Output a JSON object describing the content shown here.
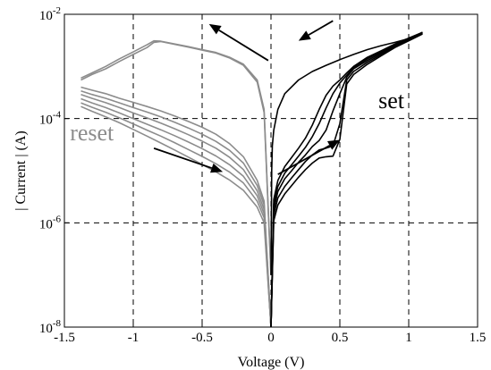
{
  "chart_data": {
    "type": "line",
    "title": "",
    "xlabel": "Voltage (V)",
    "ylabel": "| Current | (A)",
    "xscale": "linear",
    "yscale": "log",
    "xlim": [
      -1.5,
      1.5
    ],
    "ylim": [
      1e-08,
      0.01
    ],
    "grid": true,
    "grid_style": "dashed",
    "x_ticks": [
      -1.5,
      -1,
      -0.5,
      0,
      0.5,
      1,
      1.5
    ],
    "x_tick_labels": [
      "-1.5",
      "-1",
      "-0.5",
      "0",
      "0.5",
      "1",
      "1.5"
    ],
    "y_ticks": [
      1e-08,
      1e-06,
      0.0001,
      0.01
    ],
    "y_tick_labels": [
      {
        "base": "10",
        "exp": "-8"
      },
      {
        "base": "10",
        "exp": "-6"
      },
      {
        "base": "10",
        "exp": "-4"
      },
      {
        "base": "10",
        "exp": "-2"
      }
    ],
    "colors": {
      "set": "#000000",
      "reset": "#8c8c8c"
    },
    "annotations": [
      {
        "text": "set",
        "x": 0.78,
        "y": 0.00016,
        "color": "#000000"
      },
      {
        "text": "reset",
        "x": -1.2,
        "y": 3.8e-05,
        "color": "#8c8c8c"
      }
    ],
    "arrows": [
      {
        "from": [
          0.05,
          8.5e-06
        ],
        "to": [
          0.5,
          3.9e-05
        ],
        "color": "#000000"
      },
      {
        "from": [
          0.45,
          0.0075
        ],
        "to": [
          0.2,
          0.0031
        ],
        "color": "#000000"
      },
      {
        "from": [
          -0.02,
          0.0013
        ],
        "to": [
          -0.45,
          0.0065
        ],
        "color": "#000000"
      },
      {
        "from": [
          -0.85,
          2.7e-05
        ],
        "to": [
          -0.35,
          9.5e-06
        ],
        "color": "#000000"
      }
    ],
    "series": [
      {
        "group": "set",
        "color": "#000000",
        "x": [
          0.0,
          0.02,
          0.05,
          0.1,
          0.15,
          0.2,
          0.25,
          0.3,
          0.35,
          0.4,
          0.45,
          0.5,
          0.55,
          0.6,
          0.7,
          0.8,
          0.9,
          1.0,
          1.1
        ],
        "y": [
          1e-08,
          1.1e-06,
          2.2e-06,
          3.6e-06,
          5.2e-06,
          7.5e-06,
          1.05e-05,
          1.4e-05,
          1.75e-05,
          1.85e-05,
          1.9e-05,
          4e-05,
          0.00046,
          0.0007,
          0.0011,
          0.0016,
          0.0023,
          0.0031,
          0.0042
        ]
      },
      {
        "group": "set",
        "color": "#000000",
        "x": [
          0.0,
          0.02,
          0.05,
          0.1,
          0.15,
          0.2,
          0.25,
          0.3,
          0.35,
          0.4,
          0.45,
          0.5,
          0.55,
          0.6,
          0.7,
          0.8,
          0.9,
          1.0,
          1.1
        ],
        "y": [
          1e-08,
          1.4e-06,
          3e-06,
          5e-06,
          7.3e-06,
          1.05e-05,
          1.5e-05,
          2e-05,
          2.5e-05,
          2.7e-05,
          3e-05,
          8e-05,
          0.00055,
          0.0008,
          0.0012,
          0.0017,
          0.0024,
          0.0032,
          0.0043
        ]
      },
      {
        "group": "set",
        "color": "#000000",
        "x": [
          0.0,
          0.02,
          0.05,
          0.1,
          0.15,
          0.2,
          0.25,
          0.3,
          0.35,
          0.4,
          0.45,
          0.5,
          0.55,
          0.6,
          0.7,
          0.8,
          0.9,
          1.0,
          1.1
        ],
        "y": [
          1e-08,
          1.8e-06,
          4e-06,
          7e-06,
          1e-05,
          1.45e-05,
          2e-05,
          2.9e-05,
          3.8e-05,
          6e-05,
          0.00014,
          0.0003,
          0.00062,
          0.0009,
          0.0013,
          0.0018,
          0.0025,
          0.0033,
          0.0044
        ]
      },
      {
        "group": "set",
        "color": "#000000",
        "x": [
          0.0,
          0.02,
          0.05,
          0.1,
          0.15,
          0.2,
          0.25,
          0.3,
          0.35,
          0.4,
          0.45,
          0.5,
          0.55,
          0.6,
          0.7,
          0.8,
          0.9,
          1.0,
          1.1
        ],
        "y": [
          1e-08,
          2.3e-06,
          5e-06,
          9e-06,
          1.3e-05,
          1.9e-05,
          2.8e-05,
          4.5e-05,
          8e-05,
          0.00016,
          0.0003,
          0.00048,
          0.00068,
          0.00095,
          0.0014,
          0.0019,
          0.0026,
          0.0034,
          0.0045
        ]
      },
      {
        "group": "set",
        "color": "#000000",
        "x": [
          0.0,
          0.02,
          0.05,
          0.1,
          0.15,
          0.2,
          0.25,
          0.3,
          0.35,
          0.4,
          0.45,
          0.5,
          0.55,
          0.6,
          0.7,
          0.8,
          0.9,
          1.0,
          1.1
        ],
        "y": [
          1e-08,
          2.8e-06,
          6.5e-06,
          1.2e-05,
          1.8e-05,
          2.7e-05,
          4.2e-05,
          7.5e-05,
          0.00015,
          0.00028,
          0.00042,
          0.00055,
          0.00075,
          0.001,
          0.0015,
          0.002,
          0.0027,
          0.0035,
          0.0045
        ]
      },
      {
        "group": "set",
        "color": "#000000",
        "x": [
          0.0,
          0.005,
          0.01,
          0.02,
          0.05,
          0.1,
          0.2,
          0.3,
          0.4,
          0.5,
          0.6,
          0.7,
          0.8,
          0.9,
          1.0,
          1.1
        ],
        "y": [
          1e-07,
          1e-05,
          3e-05,
          6e-05,
          0.00015,
          0.0003,
          0.00055,
          0.0008,
          0.00105,
          0.00135,
          0.0017,
          0.0021,
          0.0025,
          0.0029,
          0.0034,
          0.0045
        ]
      },
      {
        "group": "reset",
        "color": "#8c8c8c",
        "x": [
          0.0,
          -0.05,
          -0.1,
          -0.2,
          -0.3,
          -0.4,
          -0.5,
          -0.6,
          -0.7,
          -0.8,
          -0.85,
          -0.9,
          -1.0,
          -1.1,
          -1.2,
          -1.3,
          -1.38
        ],
        "y": [
          1e-07,
          0.00015,
          0.00055,
          0.0011,
          0.0015,
          0.00185,
          0.0021,
          0.0024,
          0.0027,
          0.00305,
          0.0031,
          0.0026,
          0.0019,
          0.0014,
          0.001,
          0.00075,
          0.0006
        ]
      },
      {
        "group": "reset",
        "color": "#8c8c8c",
        "x": [
          0.0,
          -0.05,
          -0.1,
          -0.2,
          -0.3,
          -0.4,
          -0.5,
          -0.6,
          -0.7,
          -0.8,
          -0.85,
          -0.9,
          -1.0,
          -1.1,
          -1.2,
          -1.3,
          -1.38
        ],
        "y": [
          1e-07,
          0.00013,
          0.0005,
          0.00105,
          0.00145,
          0.0018,
          0.00205,
          0.00235,
          0.00265,
          0.003,
          0.0029,
          0.0023,
          0.0017,
          0.00125,
          0.0009,
          0.0007,
          0.00055
        ]
      },
      {
        "group": "reset",
        "color": "#8c8c8c",
        "x": [
          -1.38,
          -1.3,
          -1.2,
          -1.1,
          -1.0,
          -0.9,
          -0.8,
          -0.7,
          -0.6,
          -0.5,
          -0.4,
          -0.3,
          -0.2,
          -0.1,
          -0.05,
          0.0
        ],
        "y": [
          0.0004,
          0.00035,
          0.0003,
          0.000245,
          0.000205,
          0.00017,
          0.00014,
          0.000112,
          8.8e-05,
          6.8e-05,
          5e-05,
          3.3e-05,
          1.85e-05,
          6.5e-06,
          2.6e-06,
          1e-08
        ]
      },
      {
        "group": "reset",
        "color": "#8c8c8c",
        "x": [
          -1.38,
          -1.3,
          -1.2,
          -1.1,
          -1.0,
          -0.9,
          -0.8,
          -0.7,
          -0.6,
          -0.5,
          -0.4,
          -0.3,
          -0.2,
          -0.1,
          -0.05,
          0.0
        ],
        "y": [
          0.00034,
          0.00029,
          0.000245,
          0.0002,
          0.000162,
          0.000133,
          0.000108,
          8.5e-05,
          6.6e-05,
          5e-05,
          3.65e-05,
          2.45e-05,
          1.4e-05,
          5.2e-06,
          2.2e-06,
          1e-08
        ]
      },
      {
        "group": "reset",
        "color": "#8c8c8c",
        "x": [
          -1.38,
          -1.3,
          -1.2,
          -1.1,
          -1.0,
          -0.9,
          -0.8,
          -0.7,
          -0.6,
          -0.5,
          -0.4,
          -0.3,
          -0.2,
          -0.1,
          -0.05,
          0.0
        ],
        "y": [
          0.00029,
          0.000245,
          0.000202,
          0.000162,
          0.000128,
          0.000103,
          8.2e-05,
          6.4e-05,
          4.9e-05,
          3.7e-05,
          2.7e-05,
          1.8e-05,
          1.05e-05,
          4.1e-06,
          1.8e-06,
          1e-08
        ]
      },
      {
        "group": "reset",
        "color": "#8c8c8c",
        "x": [
          -1.38,
          -1.3,
          -1.2,
          -1.1,
          -1.0,
          -0.9,
          -0.8,
          -0.7,
          -0.6,
          -0.5,
          -0.4,
          -0.3,
          -0.2,
          -0.1,
          -0.05,
          0.0
        ],
        "y": [
          0.00024,
          0.0002,
          0.000162,
          0.000128,
          0.0001,
          7.8e-05,
          6.1e-05,
          4.7e-05,
          3.55e-05,
          2.65e-05,
          1.92e-05,
          1.3e-05,
          7.8e-06,
          3.3e-06,
          1.5e-06,
          1e-08
        ]
      },
      {
        "group": "reset",
        "color": "#8c8c8c",
        "x": [
          -1.38,
          -1.3,
          -1.2,
          -1.1,
          -1.0,
          -0.9,
          -0.8,
          -0.7,
          -0.6,
          -0.5,
          -0.4,
          -0.3,
          -0.2,
          -0.1,
          -0.05,
          0.0
        ],
        "y": [
          0.0002,
          0.000165,
          0.000132,
          0.000103,
          7.9e-05,
          6e-05,
          4.6e-05,
          3.45e-05,
          2.55e-05,
          1.88e-05,
          1.36e-05,
          9.4e-06,
          5.8e-06,
          2.6e-06,
          1.25e-06,
          1e-08
        ]
      },
      {
        "group": "reset",
        "color": "#8c8c8c",
        "x": [
          -1.38,
          -1.3,
          -1.2,
          -1.1,
          -1.0,
          -0.9,
          -0.8,
          -0.7,
          -0.6,
          -0.5,
          -0.4,
          -0.3,
          -0.2,
          -0.1,
          -0.05,
          0.0
        ],
        "y": [
          0.00017,
          0.000138,
          0.000108,
          8.3e-05,
          6.2e-05,
          4.6e-05,
          3.4e-05,
          2.5e-05,
          1.82e-05,
          1.32e-05,
          9.5e-06,
          6.6e-06,
          4.2e-06,
          2e-06,
          1e-06,
          1e-08
        ]
      }
    ]
  }
}
